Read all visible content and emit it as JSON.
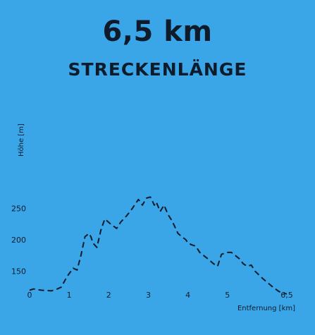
{
  "header": {
    "distance": "6,5 km",
    "label": "STRECKENLÄNGE"
  },
  "colors": {
    "background": "#3aa6e8",
    "line": "#0d1b2a"
  },
  "chart_data": {
    "type": "line",
    "xlabel": "Entfernung [km]",
    "ylabel": "Höhe [m]",
    "xlim": [
      0,
      6.5
    ],
    "ylim": [
      115,
      275
    ],
    "x_ticks": [
      0,
      1,
      2,
      3,
      4,
      5,
      6.5
    ],
    "x_tick_labels": [
      "0",
      "1",
      "2",
      "3",
      "4",
      "5",
      "6,5"
    ],
    "y_ticks": [
      150,
      200,
      250
    ],
    "y_tick_labels": [
      "150",
      "200",
      "250"
    ],
    "grid": false,
    "line_style": "dashed",
    "series": [
      {
        "x": [
          0.0,
          0.1,
          0.3,
          0.55,
          0.7,
          0.8,
          0.95,
          1.1,
          1.2,
          1.3,
          1.4,
          1.5,
          1.55,
          1.6,
          1.7,
          1.8,
          1.9,
          2.05,
          2.2,
          2.3,
          2.45,
          2.6,
          2.65,
          2.75,
          2.8,
          2.85,
          2.95,
          3.05,
          3.1,
          3.15,
          3.2,
          3.3,
          3.4,
          3.5,
          3.6,
          3.75,
          3.85,
          3.95,
          4.0,
          4.1,
          4.2,
          4.3,
          4.5,
          4.65,
          4.75,
          4.85,
          5.0,
          5.1,
          5.3,
          5.4,
          5.5,
          5.6,
          5.7,
          5.9,
          6.15,
          6.3,
          6.5
        ],
        "y": [
          120,
          122,
          120,
          119,
          122,
          125,
          142,
          155,
          152,
          176,
          205,
          210,
          205,
          195,
          188,
          215,
          233,
          225,
          218,
          228,
          238,
          250,
          255,
          264,
          260,
          255,
          266,
          268,
          262,
          255,
          260,
          245,
          255,
          240,
          230,
          210,
          205,
          200,
          195,
          192,
          190,
          180,
          170,
          162,
          158,
          177,
          180,
          180,
          170,
          162,
          158,
          160,
          150,
          138,
          125,
          118,
          114
        ]
      }
    ]
  }
}
